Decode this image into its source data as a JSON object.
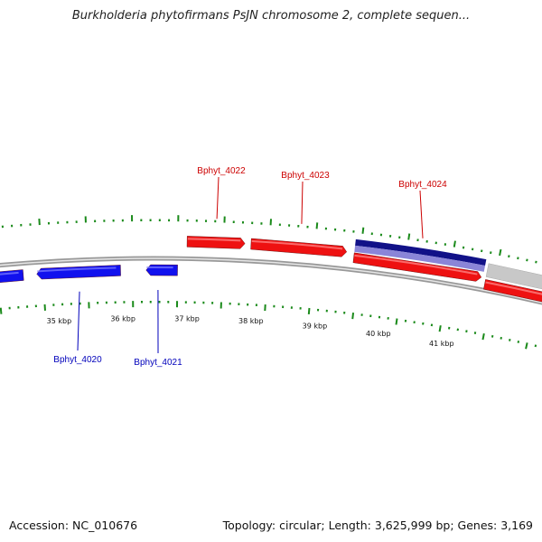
{
  "title": "Burkholderia phytofirmans PsJN chromosome 2, complete sequen...",
  "accession": "Accession: NC_010676",
  "summary": "Topology: circular; Length: 3,625,999 bp; Genes: 3,169",
  "colors": {
    "forward_gene": "#ee1111",
    "reverse_gene": "#1111ee",
    "selected_gene": "#111188",
    "selected_gene_band": "#8a85d8",
    "other_gene": "#c8c8c8",
    "backbone": "#777777",
    "ticks": "#1a8a1a",
    "forward_label": "#cc0000",
    "reverse_label": "#0000bb"
  },
  "scale_labels": [
    "35 kbp",
    "36 kbp",
    "37 kbp",
    "38 kbp",
    "39 kbp",
    "40 kbp",
    "41 kbp"
  ],
  "gene_labels": {
    "forward": [
      "Bphyt_4022",
      "Bphyt_4023",
      "Bphyt_4024"
    ],
    "reverse": [
      "Bphyt_4020",
      "Bphyt_4021"
    ]
  }
}
